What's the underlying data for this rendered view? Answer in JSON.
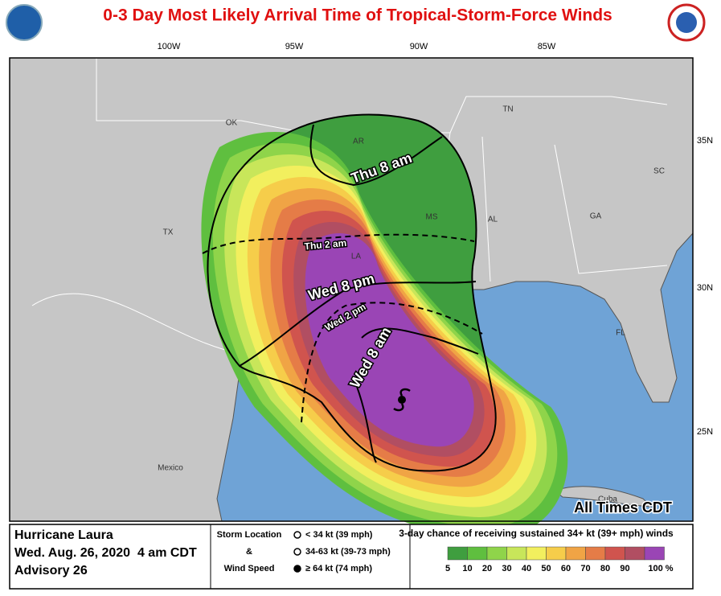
{
  "header": {
    "title": "0-3 Day Most Likely Arrival Time of Tropical-Storm-Force Winds"
  },
  "map": {
    "longitude_labels": [
      "100W",
      "95W",
      "90W",
      "85W"
    ],
    "latitude_labels": [
      "35N",
      "30N",
      "25N"
    ],
    "place_labels": [
      "OK",
      "AR",
      "TN",
      "SC",
      "MS",
      "AL",
      "GA",
      "TX",
      "LA",
      "FL",
      "Mexico",
      "Cuba"
    ],
    "arrival_labels": [
      "Thu 8 am",
      "Thu 2 am",
      "Wed 8 pm",
      "Wed 2 pm",
      "Wed 8 am"
    ],
    "note": "All Times CDT"
  },
  "info": {
    "storm": "Hurricane Laura",
    "issued": "Wed. Aug. 26, 2020  4 am CDT",
    "advisory": "Advisory 26"
  },
  "storm_legend": {
    "title_lines": [
      "Storm Location",
      "&",
      "Wind Speed"
    ],
    "items": [
      "< 34 kt (39 mph)",
      "34-63 kt (39-73 mph)",
      "≥ 64 kt (74 mph)"
    ]
  },
  "probability_legend": {
    "title": "3-day chance of receiving sustained 34+ kt (39+ mph) winds",
    "levels": [
      {
        "label": "5",
        "color": "#3f9e3f"
      },
      {
        "label": "10",
        "color": "#5fbf3f"
      },
      {
        "label": "20",
        "color": "#8fd44a"
      },
      {
        "label": "30",
        "color": "#c8e65a"
      },
      {
        "label": "40",
        "color": "#f2ef5e"
      },
      {
        "label": "50",
        "color": "#f6cd4a"
      },
      {
        "label": "60",
        "color": "#f0a445"
      },
      {
        "label": "70",
        "color": "#e57c47"
      },
      {
        "label": "80",
        "color": "#d0544e"
      },
      {
        "label": "90",
        "color": "#b14e62"
      },
      {
        "label": "100 %",
        "color": "#9a45b5"
      }
    ]
  }
}
